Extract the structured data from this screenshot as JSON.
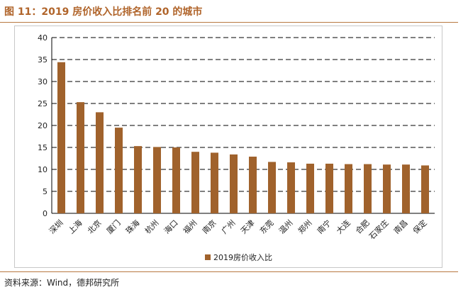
{
  "header": {
    "title": "图 11：2019 房价收入比排名前 20 的城市"
  },
  "footer": {
    "source": "资料来源：Wind，德邦研究所"
  },
  "colors": {
    "bar": "#a0622c",
    "accent": "#b0642a",
    "rule": "#b87840",
    "grid": "#000000"
  },
  "chart_data": {
    "type": "bar",
    "title": "",
    "xlabel": "",
    "ylabel": "",
    "ylim": [
      0,
      40
    ],
    "yticks": [
      0,
      5,
      10,
      15,
      20,
      25,
      30,
      35,
      40
    ],
    "grid": true,
    "legend": "bottom",
    "categories": [
      "深圳",
      "上海",
      "北京",
      "厦门",
      "珠海",
      "杭州",
      "海口",
      "福州",
      "南京",
      "广州",
      "天津",
      "东莞",
      "温州",
      "郑州",
      "南宁",
      "大连",
      "合肥",
      "石家庄",
      "南昌",
      "保定"
    ],
    "series": [
      {
        "name": "2019房价收入比",
        "values": [
          34.4,
          25.3,
          23.0,
          19.5,
          15.3,
          15.1,
          15.0,
          14.0,
          13.8,
          13.4,
          12.9,
          11.7,
          11.6,
          11.3,
          11.3,
          11.2,
          11.2,
          11.1,
          11.1,
          10.9
        ]
      }
    ]
  }
}
